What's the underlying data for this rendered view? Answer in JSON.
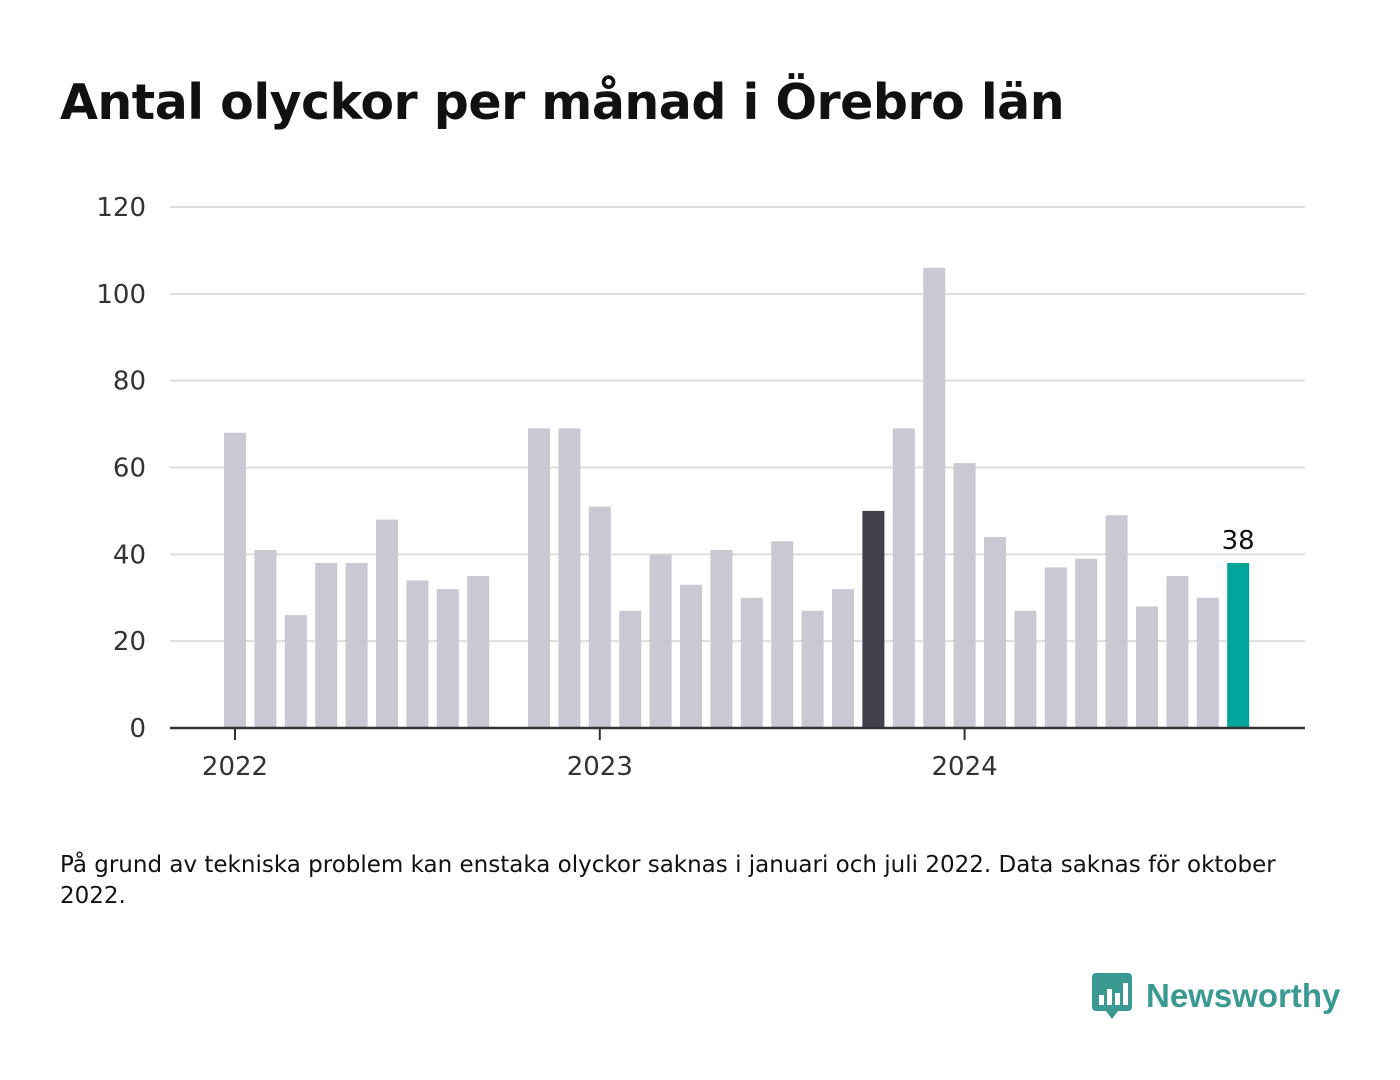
{
  "title": "Antal olyckor per månad i Örebro län",
  "chart_data": {
    "type": "bar",
    "title": "Antal olyckor per månad i Örebro län",
    "xlabel": "",
    "ylabel": "",
    "ylim": [
      0,
      120
    ],
    "yticks": [
      0,
      20,
      40,
      60,
      80,
      100,
      120
    ],
    "xticks": [
      {
        "label": "2022",
        "month_index": 0
      },
      {
        "label": "2023",
        "month_index": 12
      },
      {
        "label": "2024",
        "month_index": 24
      }
    ],
    "grid": true,
    "months": [
      "2022-01",
      "2022-02",
      "2022-03",
      "2022-04",
      "2022-05",
      "2022-06",
      "2022-07",
      "2022-08",
      "2022-09",
      "2022-10",
      "2022-11",
      "2022-12",
      "2023-01",
      "2023-02",
      "2023-03",
      "2023-04",
      "2023-05",
      "2023-06",
      "2023-07",
      "2023-08",
      "2023-09",
      "2023-10",
      "2023-11",
      "2023-12",
      "2024-01",
      "2024-02",
      "2024-03",
      "2024-04",
      "2024-05",
      "2024-06",
      "2024-07",
      "2024-08",
      "2024-09",
      "2024-10"
    ],
    "values": [
      68,
      41,
      26,
      38,
      38,
      48,
      34,
      32,
      35,
      null,
      69,
      69,
      51,
      27,
      40,
      33,
      41,
      30,
      43,
      27,
      32,
      50,
      69,
      106,
      61,
      44,
      27,
      37,
      39,
      49,
      28,
      35,
      30,
      38
    ],
    "highlight": [
      {
        "month": "2023-10",
        "color": "#42404c"
      }
    ],
    "last_value_label": "38",
    "colors": {
      "default": "#c9c8d3",
      "highlight": "#42404c",
      "latest": "#00a59a",
      "grid": "#dddddd",
      "axis": "#333333"
    }
  },
  "note": "På grund av tekniska problem kan enstaka olyckor saknas i januari och juli 2022. Data saknas för oktober 2022.",
  "brand": {
    "name": "Newsworthy",
    "color": "#3a9a92",
    "icon": "newsworthy-logo-icon"
  }
}
